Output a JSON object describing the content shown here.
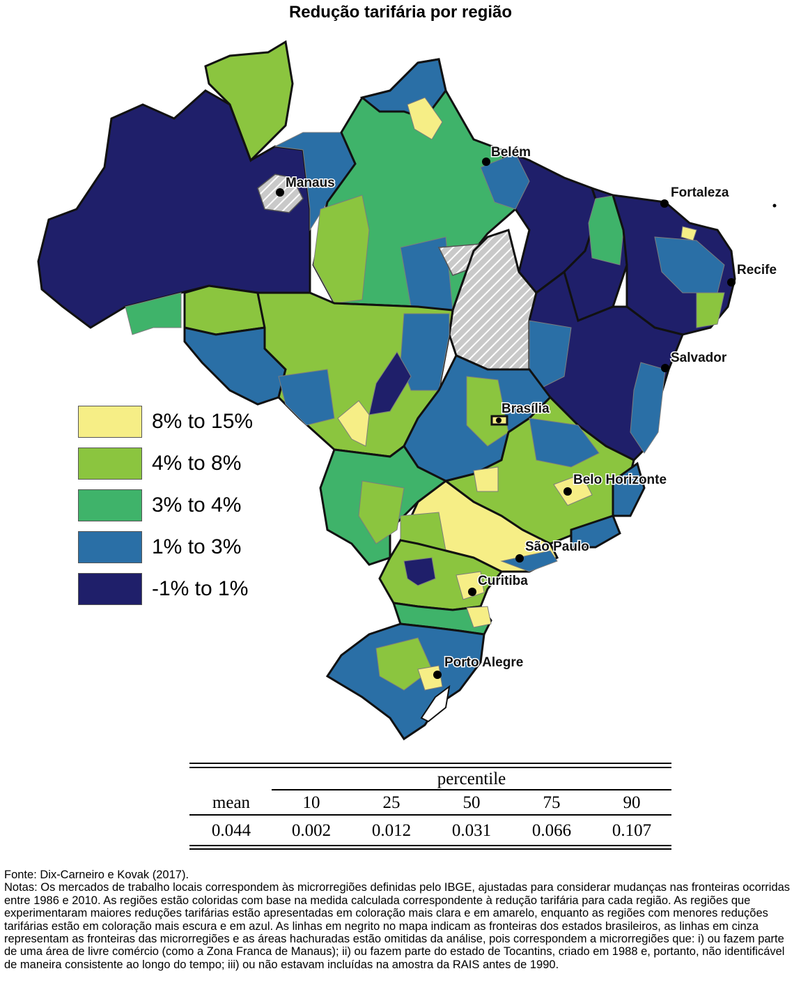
{
  "title": "Redução tarifária por região",
  "colors": {
    "cat1": "#f6ee86",
    "cat2": "#8bc53f",
    "cat3": "#3fb36a",
    "cat4": "#2a6fa6",
    "cat5": "#1f1f6a",
    "hatch": "#b8b8b8",
    "state_border": "#111111",
    "micro_border": "#7d7d7d"
  },
  "legend": [
    {
      "label": "8% to 15%",
      "color": "#f6ee86"
    },
    {
      "label": "4% to 8%",
      "color": "#8bc53f"
    },
    {
      "label": "3% to 4%",
      "color": "#3fb36a"
    },
    {
      "label": "1% to 3%",
      "color": "#2a6fa6"
    },
    {
      "label": "-1% to 1%",
      "color": "#1f1f6a"
    }
  ],
  "cities": [
    "Manaus",
    "Belém",
    "Fortaleza",
    "Recife",
    "Salvador",
    "Brasília",
    "Belo Horizonte",
    "São Paulo",
    "Curitiba",
    "Porto Alegre"
  ],
  "stats_table": {
    "group_header": "percentile",
    "mean_header": "mean",
    "percentile_headers": [
      "10",
      "25",
      "50",
      "75",
      "90"
    ],
    "mean_value": "0.044",
    "percentile_values": [
      "0.002",
      "0.012",
      "0.031",
      "0.066",
      "0.107"
    ]
  },
  "source": "Fonte: Dix-Carneiro e Kovak (2017).",
  "notes": "Notas: Os mercados de trabalho locais correspondem às microrregiões definidas pelo IBGE, ajustadas para considerar mudanças nas fronteiras ocorridas entre 1986 e 2010. As regiões estão coloridas com base na medida calculada correspondente à redução tarifária para cada região. As regiões que experimentaram maiores reduções tarifárias estão apresentadas em coloração mais clara e em amarelo, enquanto as regiões com menores reduções tarifárias estão em coloração mais escura e em azul. As linhas em negrito no mapa indicam as fronteiras dos estados brasileiros, as linhas em cinza representam as fronteiras das microrregiões e as áreas hachuradas estão omitidas da análise, pois correspondem a microrregiões que: i) ou fazem parte de uma área de livre comércio (como a Zona Franca de Manaus); ii) ou fazem parte do estado de Tocantins, criado em 1988 e, portanto, não identificável de maneira consistente ao longo do tempo; iii) ou não estavam incluídas na amostra da RAIS antes de 1990."
}
